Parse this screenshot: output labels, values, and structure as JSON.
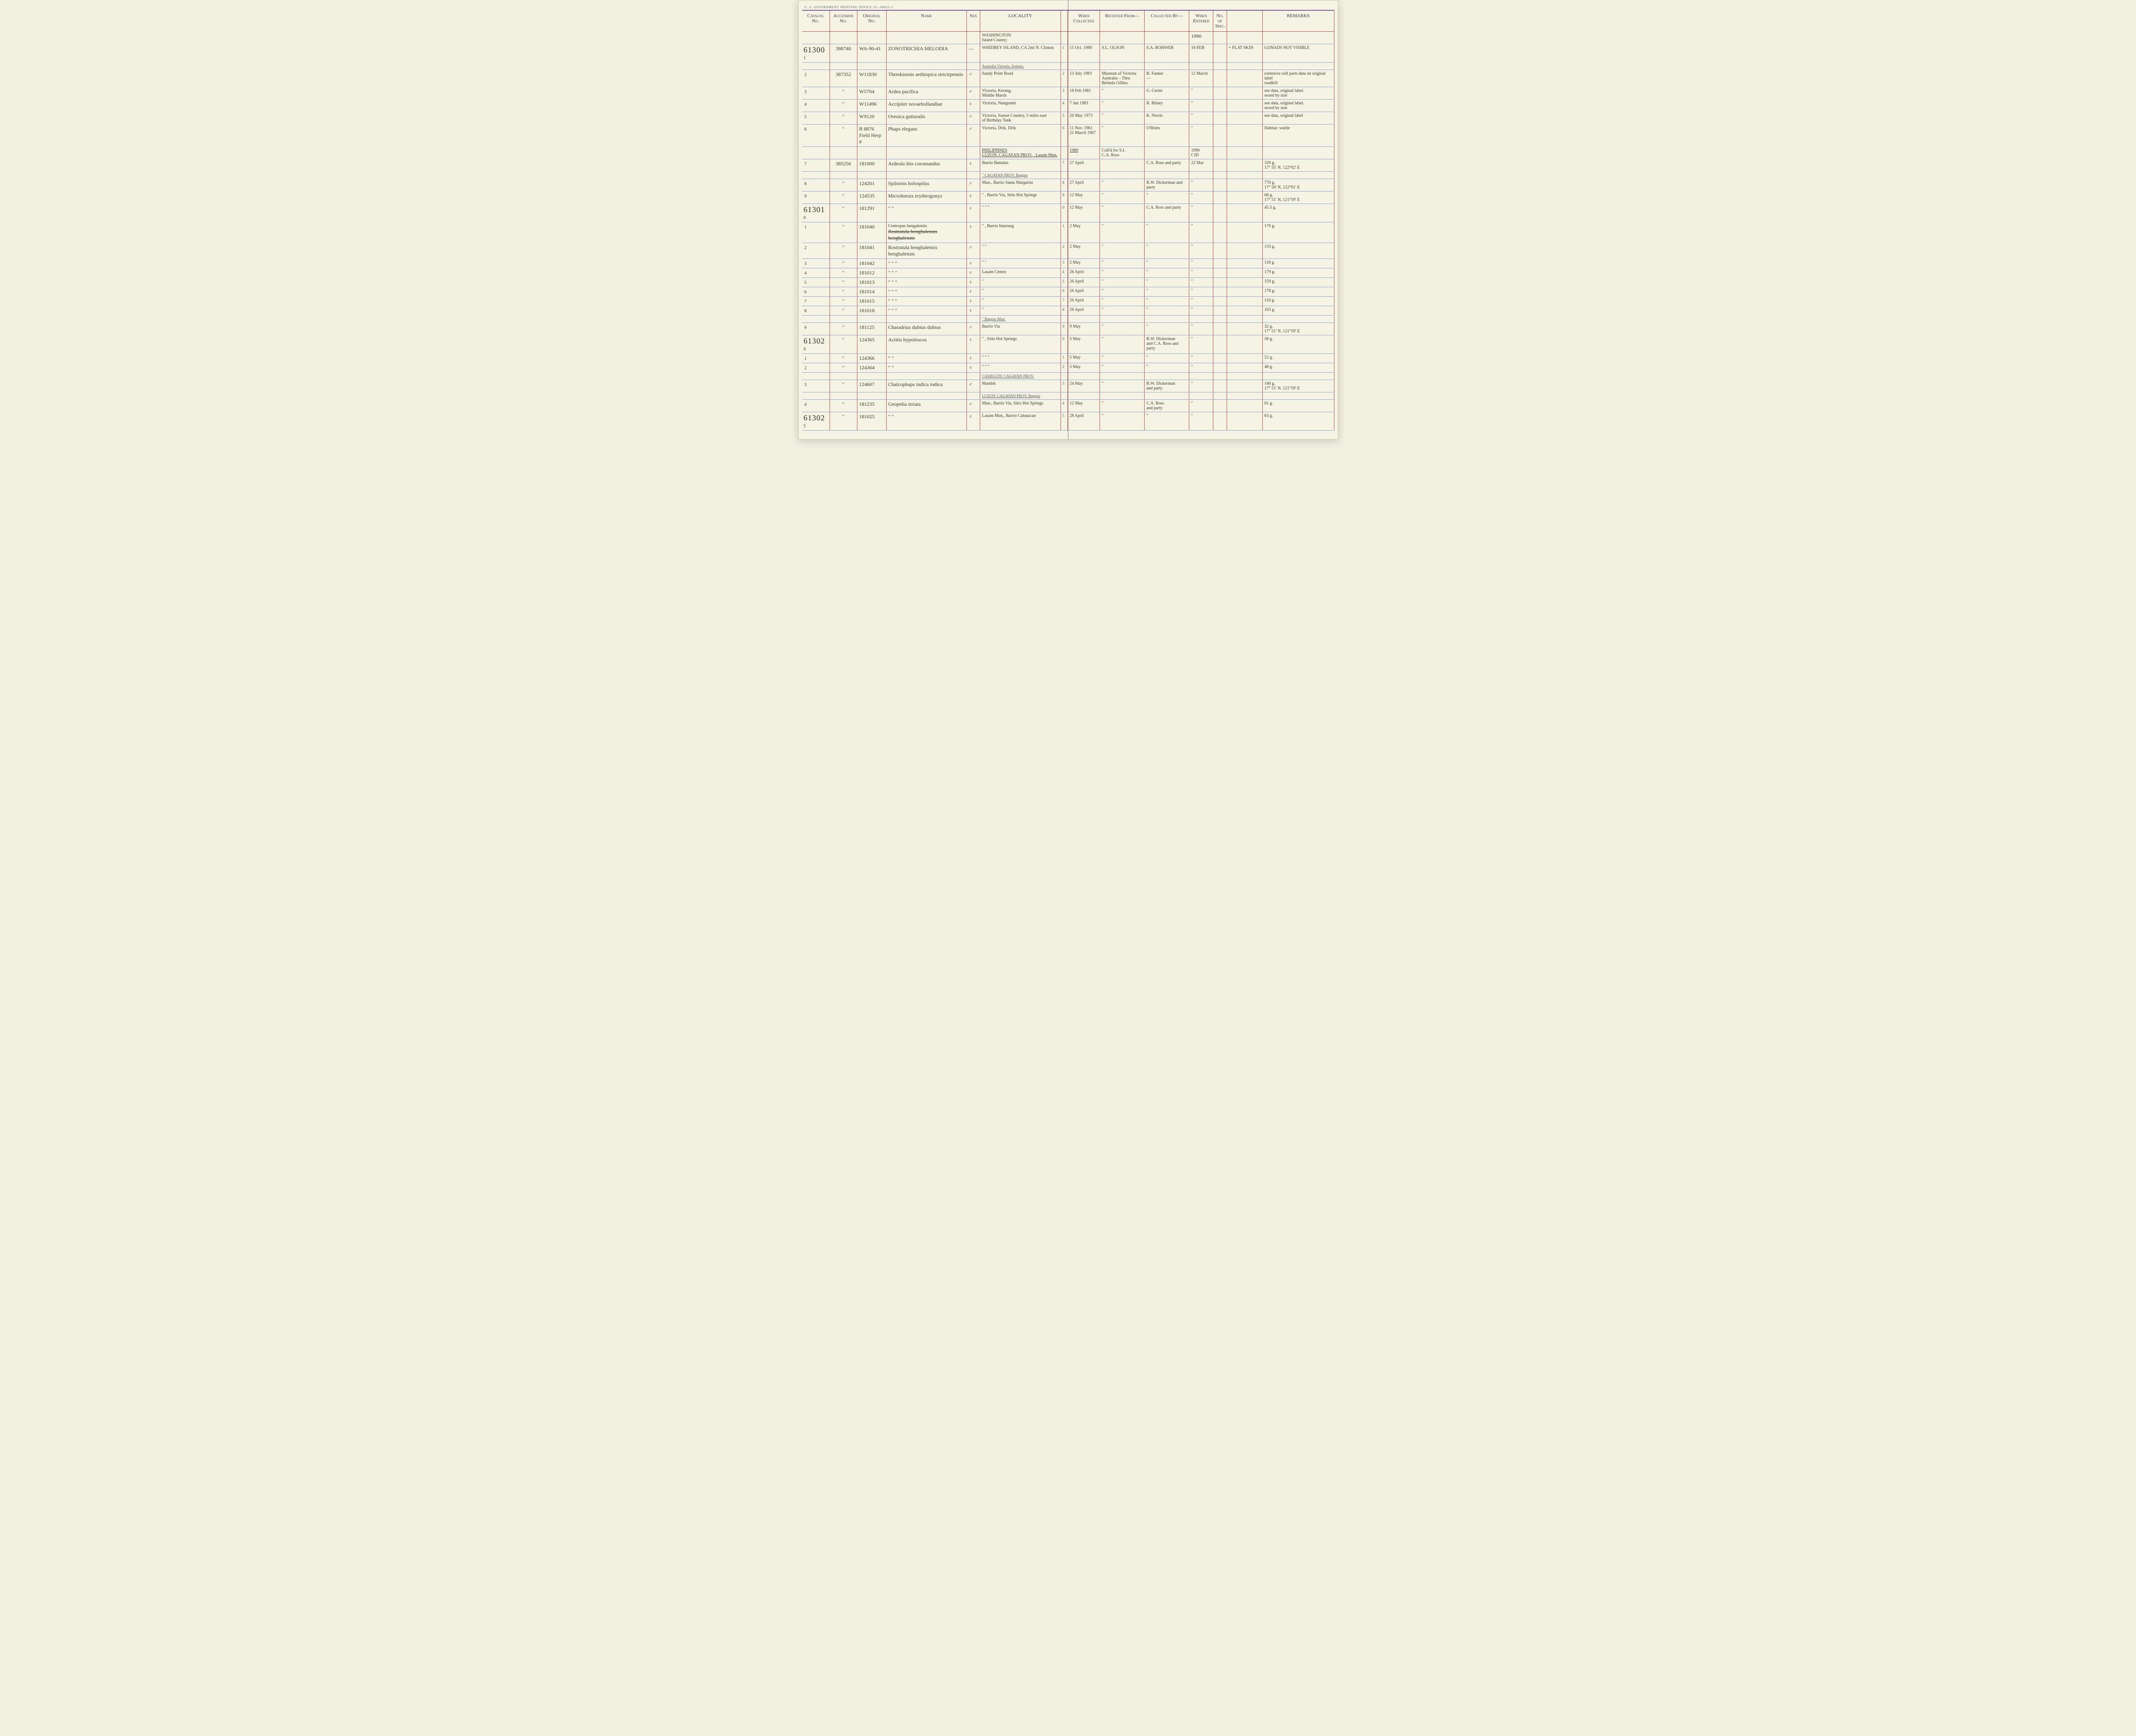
{
  "meta": {
    "gpo_text": "U. S. GOVERNMENT PRINTING OFFICE   16—60025-1"
  },
  "headers": {
    "catalog": "Catalog No.",
    "accession": "Accession No.",
    "original": "Original No.",
    "name": "Name",
    "sex": "Sex",
    "locality": "LOCALITY",
    "when_collected": "When Collected",
    "received_from": "Received From—",
    "collected_by": "Collected By—",
    "when_entered": "When Entered",
    "no_of_spec": "No. of Spec.",
    "remarks": "REMARKS"
  },
  "top_entered_year": "1990",
  "region1": {
    "locality_header": "WASHINGTON:\n  Island County;"
  },
  "region2": {
    "locality_header": "PHILIPPINES\nLUZON:  CAGAYAN PROV.   , Lasam Mun.",
    "year": "1989",
    "received_from": "Coll'd for S.I.\nC.A. Ross",
    "entered_year": "1990\nCJD"
  },
  "rows": [
    {
      "cat_big": "61300",
      "cat_sub": "1",
      "acc": "388740",
      "orig": "WA-90-41",
      "name": "ZONOTRICHIA  MELODIA",
      "sex": "—",
      "locality": "WHIDBEY ISLAND, CA 2mi N. Clinton",
      "idx": "1",
      "when_coll": "15 Oct. 1989",
      "rfrom": "S.L. OLSON",
      "cby": "S.A. ROHWER",
      "entered": "16 FEB",
      "extra": "+ FLAT SKIN",
      "remarks": "GONADS NOT VISIBLE"
    },
    {
      "cat_big": "",
      "cat_sub": "2",
      "acc": "387352",
      "orig": "W11830",
      "name": "Threskiornis aethiopica strictipennis",
      "sex": "♂",
      "locality_pre": "Australia  Victoria, Somers,",
      "locality": "   Sandy Point Road",
      "idx": "2",
      "when_coll": "13 July 1983",
      "rfrom": "Museum of Victoria\nAustralia – Thru\nBelinda Gillies",
      "cby": "B. Fanner\n—",
      "entered": "12 March",
      "extra": "",
      "remarks": "extensive soft parts data on original label\nroadkill"
    },
    {
      "cat_big": "",
      "cat_sub": "3",
      "acc": "″",
      "orig": "W5704",
      "name": "Ardea pacifica",
      "sex": "♂",
      "locality": "Victoria, Kerang,\n  Middle Marsh",
      "idx": "3",
      "when_coll": "18 Feb 1961",
      "rfrom": "″",
      "cby": "G. Cerini",
      "entered": "″",
      "extra": "",
      "remarks": "see data, original label.\nsexed by size"
    },
    {
      "cat_big": "",
      "cat_sub": "4",
      "acc": "″",
      "orig": "W11496",
      "name": "Accipiter novaehollandiae",
      "sex": "♀",
      "locality": "Victoria, Nungumei",
      "idx": "4",
      "when_coll": "7 Jan 1983",
      "rfrom": "″",
      "cby": "R. Bilney",
      "entered": "″",
      "extra": "",
      "remarks": "see data, original label.\nsexed by size"
    },
    {
      "cat_big": "",
      "cat_sub": "5",
      "acc": "″",
      "orig": "W9120",
      "name": "Oreoica gutturalis",
      "sex": "♂",
      "locality": "Victoria, Sunset Country, 5 miles east\nof Birthday Tank",
      "idx": "5",
      "when_coll": "20 May 1973",
      "rfrom": "″",
      "cby": "K. Norris",
      "entered": "″",
      "extra": "",
      "remarks": "see data, original label"
    },
    {
      "cat_big": "",
      "cat_sub": "6",
      "acc": "″",
      "orig": "B 8876\nField Herp #",
      "name": "Phaps elegans",
      "sex": "♂",
      "locality": "Victoria, Drik, Drik",
      "idx": "6",
      "when_coll": "11 Nov. 1961\n21 March 1967",
      "rfrom": "″",
      "cby": "O'Brien",
      "entered": "″",
      "extra": "",
      "remarks": "Habitat: wattle"
    },
    {
      "cat_big": "",
      "cat_sub": "7",
      "acc": "385256",
      "orig": "181000",
      "name": "Ardeola ibis coromandus",
      "sex": "♀",
      "locality": "Barrio Battalan",
      "idx": "7",
      "when_coll": "27 April",
      "rfrom": "",
      "cby": "C.A. Ross and party",
      "entered": "22 Mar",
      "extra": "",
      "remarks": "320 g.\n17° 55' N. 122°02' E"
    },
    {
      "cat_big": "",
      "cat_sub": "8",
      "acc": "″",
      "orig": "124201",
      "name": "Spilornis holospilus",
      "sex": "♂",
      "locality_pre": "″    CAGAYAN PROV.   Baggao",
      "locality": "Mun., Barrio Santa Margarita",
      "idx": "8",
      "when_coll": "27 April",
      "rfrom": "″",
      "cby": "R.W. Dickerman and party",
      "entered": "″",
      "extra": "",
      "remarks": "770 g.\n17° 50' N, 122°01' E"
    },
    {
      "cat_big": "",
      "cat_sub": "9",
      "acc": "″",
      "orig": "124535",
      "name": "Microhierax erythrogonys",
      "sex": "♀",
      "locality": "″ , Barrio Via, Sitio Hot Springs",
      "idx": "9",
      "when_coll": "12 May",
      "rfrom": "″",
      "cby": "″",
      "entered": "″",
      "extra": "",
      "remarks": "68 g.\n17° 51' N, 121°59' E"
    },
    {
      "cat_big": "61301",
      "cat_sub": "0",
      "acc": "″",
      "orig": "181291",
      "name": "″      ″",
      "sex": "♀",
      "locality": "″        ″        ″",
      "idx": "0",
      "when_coll": "12 May",
      "rfrom": "″",
      "cby": "C.A. Ross and party",
      "entered": "″",
      "extra": "",
      "remarks": "45.5 g."
    },
    {
      "cat_big": "",
      "cat_sub": "1",
      "acc": "″",
      "orig": "181040",
      "name_strike": "Rostratula benghalensis benghalensis",
      "name_above": "Centropus bengalensis",
      "sex": "♀",
      "locality": "″ , Barrio Imurung",
      "idx": "1",
      "when_coll": "2 May",
      "rfrom": "″",
      "cby": "″",
      "entered": "″",
      "extra": "",
      "remarks": "170 g."
    },
    {
      "cat_big": "",
      "cat_sub": "2",
      "acc": "″",
      "orig": "181041",
      "name": "Rostratula benghalensis benghalensis",
      "sex": "♂",
      "locality": "″        ″",
      "idx": "2",
      "when_coll": "2 May",
      "rfrom": "″",
      "cby": "″",
      "entered": "″",
      "extra": "",
      "remarks": "133 g."
    },
    {
      "cat_big": "",
      "cat_sub": "3",
      "acc": "″",
      "orig": "181042",
      "name": "″      ″      ″",
      "sex": "♀",
      "locality": "″        ″",
      "idx": "3",
      "when_coll": "2 May",
      "rfrom": "″",
      "cby": "″",
      "entered": "″",
      "extra": "",
      "remarks": "118 g."
    },
    {
      "cat_big": "",
      "cat_sub": "4",
      "acc": "″",
      "orig": "181012",
      "name": "″      ″      ″",
      "sex": "♀",
      "locality": "Lasam   Centro",
      "idx": "4",
      "when_coll": "26 April",
      "rfrom": "″",
      "cby": "″",
      "entered": "″",
      "extra": "",
      "remarks": "179 g."
    },
    {
      "cat_big": "",
      "cat_sub": "5",
      "acc": "″",
      "orig": "181013",
      "name": "″      ″      ″",
      "sex": "♀",
      "locality": "″",
      "idx": "5",
      "when_coll": "26 April",
      "rfrom": "″",
      "cby": "″",
      "entered": "″",
      "extra": "",
      "remarks": "159 g."
    },
    {
      "cat_big": "",
      "cat_sub": "6",
      "acc": "″",
      "orig": "181014",
      "name": "″      ″      ″",
      "sex": "♀",
      "locality": "″",
      "idx": "6",
      "when_coll": "26 April",
      "rfrom": "″",
      "cby": "″",
      "entered": "″",
      "extra": "",
      "remarks": "178 g."
    },
    {
      "cat_big": "",
      "cat_sub": "7",
      "acc": "″",
      "orig": "181015",
      "name": "″      ″      ″",
      "sex": "♀",
      "locality": "″",
      "idx": "7",
      "when_coll": "26 April",
      "rfrom": "″",
      "cby": "″",
      "entered": "″",
      "extra": "",
      "remarks": "110 g."
    },
    {
      "cat_big": "",
      "cat_sub": "8",
      "acc": "″",
      "orig": "181018",
      "name": "″      ″      ″",
      "sex": "♀",
      "locality": "″",
      "idx": "8",
      "when_coll": "26 April",
      "rfrom": "″",
      "cby": "″",
      "entered": "″",
      "extra": "",
      "remarks": "163 g."
    },
    {
      "cat_big": "",
      "cat_sub": "9",
      "acc": "″",
      "orig": "181125",
      "name": "Charadrius dubius dubius",
      "sex": "♂",
      "locality_pre": "″   Baggao Mun.",
      "locality": "Barrio Via",
      "idx": "9",
      "when_coll": "9 May",
      "rfrom": "″",
      "cby": "″",
      "entered": "″",
      "extra": "",
      "remarks": "32 g.\n17° 51' N. 121°59' E"
    },
    {
      "cat_big": "61302",
      "cat_sub": "0",
      "acc": "″",
      "orig": "124365",
      "name": "Actitis hypoleucos",
      "sex": "♀",
      "locality": "″        , Sitio Hot Springs",
      "idx": "0",
      "when_coll": "5 May",
      "rfrom": "″",
      "cby": "R.W. Dickerman\nand C.A. Ross and party",
      "entered": "″",
      "extra": "",
      "remarks": "58 g."
    },
    {
      "cat_big": "",
      "cat_sub": "1",
      "acc": "″",
      "orig": "124366",
      "name": "″      ″",
      "sex": "♀",
      "locality": "″        ″        ″",
      "idx": "1",
      "when_coll": "5 May",
      "rfrom": "″",
      "cby": "″",
      "entered": "″",
      "extra": "",
      "remarks": "52 g."
    },
    {
      "cat_big": "",
      "cat_sub": "2",
      "acc": "″",
      "orig": "124364",
      "name": "″      ″",
      "sex": "♀",
      "locality": "″        ″        ″",
      "idx": "2",
      "when_coll": "5 May",
      "rfrom": "″",
      "cby": "″",
      "entered": "″",
      "extra": "",
      "remarks": "48 g."
    },
    {
      "cat_big": "",
      "cat_sub": "3",
      "acc": "″",
      "orig": "124607",
      "name": "Chalcophaps indica indica",
      "sex": "♂",
      "locality_pre": "CAMIGUIN:  CAGAYAN PROV.",
      "locality": "Mambit",
      "idx": "3",
      "when_coll": "24 May",
      "rfrom": "″",
      "cby": "R.W. Dickerman\nand party",
      "entered": "″",
      "extra": "",
      "remarks": "140 g.\n17° 51' N. 121°59' E"
    },
    {
      "cat_big": "",
      "cat_sub": "4",
      "acc": "″",
      "orig": "181235",
      "name": "Geopelia striata",
      "sex": "♂",
      "locality_pre": "LUZON:  CAGAYAN PROV. Baggao",
      "locality": "Mun., Barrio Via, Sitio Hot Springs",
      "idx": "4",
      "when_coll": "12 May",
      "rfrom": "″",
      "cby": "C.A. Ross\nand party",
      "entered": "″",
      "extra": "",
      "remarks": "61 g."
    },
    {
      "cat_big": "61302",
      "cat_sub": "5",
      "acc": "″",
      "orig": "181025",
      "name": "″      ″",
      "sex": "♀",
      "locality": "Lasam Mun., Barrio Cabatacan",
      "idx": "5",
      "when_coll": "28 April",
      "rfrom": "″",
      "cby": "″",
      "entered": "″",
      "extra": "",
      "remarks": "63 g."
    }
  ]
}
